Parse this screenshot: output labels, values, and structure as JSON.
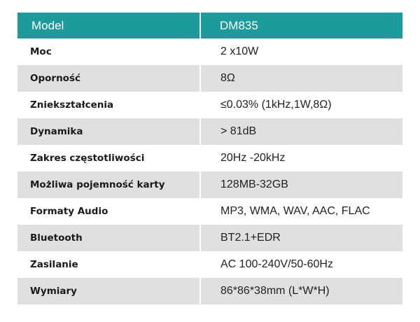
{
  "colors": {
    "header_bg": "#1d9a9c",
    "header_text": "#ffffff",
    "shaded_row": "#e0e0e0"
  },
  "header": {
    "label": "Model",
    "value": "DM835"
  },
  "rows": [
    {
      "label": "Moc",
      "value": "2 x10W"
    },
    {
      "label": "Oporność",
      "value": "8Ω"
    },
    {
      "label": "Zniekształcenia",
      "value": "≤0.03% (1kHz,1W,8Ω)"
    },
    {
      "label": "Dynamika",
      "value": "> 81dB"
    },
    {
      "label": "Zakres częstotliwości",
      "value": "20Hz -20kHz"
    },
    {
      "label": "Możliwa pojemność karty",
      "value": "128MB-32GB"
    },
    {
      "label": "Formaty Audio",
      "value": "MP3, WMA, WAV, AAC, FLAC"
    },
    {
      "label": "Bluetooth",
      "value": "BT2.1+EDR"
    },
    {
      "label": "Zasilanie",
      "value": "AC 100-240V/50-60Hz"
    },
    {
      "label": "Wymiary",
      "value": "86*86*38mm (L*W*H)"
    }
  ]
}
